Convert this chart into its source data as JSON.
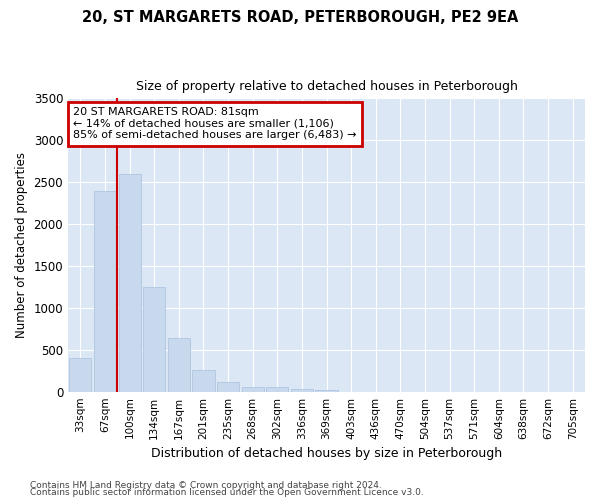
{
  "title1": "20, ST MARGARETS ROAD, PETERBOROUGH, PE2 9EA",
  "title2": "Size of property relative to detached houses in Peterborough",
  "xlabel": "Distribution of detached houses by size in Peterborough",
  "ylabel": "Number of detached properties",
  "footer1": "Contains HM Land Registry data © Crown copyright and database right 2024.",
  "footer2": "Contains public sector information licensed under the Open Government Licence v3.0.",
  "categories": [
    "33sqm",
    "67sqm",
    "100sqm",
    "134sqm",
    "167sqm",
    "201sqm",
    "235sqm",
    "268sqm",
    "302sqm",
    "336sqm",
    "369sqm",
    "403sqm",
    "436sqm",
    "470sqm",
    "504sqm",
    "537sqm",
    "571sqm",
    "604sqm",
    "638sqm",
    "672sqm",
    "705sqm"
  ],
  "values": [
    400,
    2400,
    2600,
    1250,
    640,
    260,
    110,
    55,
    50,
    30,
    25,
    0,
    0,
    0,
    0,
    0,
    0,
    0,
    0,
    0,
    0
  ],
  "bar_color": "#c8d9ee",
  "bar_edge_color": "#a8c0dc",
  "grid_color": "#ffffff",
  "bg_color": "#dce7f5",
  "vline_x": 1.5,
  "vline_color": "#cc0000",
  "annotation_line1": "20 ST MARGARETS ROAD: 81sqm",
  "annotation_line2": "← 14% of detached houses are smaller (1,106)",
  "annotation_line3": "85% of semi-detached houses are larger (6,483) →",
  "annotation_box_color": "#cc0000",
  "ylim": [
    0,
    3500
  ],
  "yticks": [
    0,
    500,
    1000,
    1500,
    2000,
    2500,
    3000,
    3500
  ]
}
